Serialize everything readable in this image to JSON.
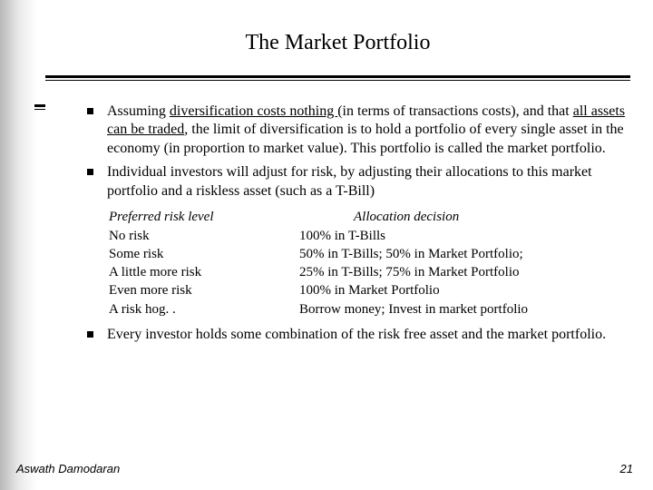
{
  "title": "The Market Portfolio",
  "bullets": {
    "b1": {
      "t1": "Assuming ",
      "u1": "diversification costs nothing ",
      "t2": "(in terms of transactions costs), and that ",
      "u2": "all assets can be traded",
      "t3": ", the limit of diversification is to hold a portfolio of every single asset in the economy (in proportion to market value). This portfolio is called the market portfolio."
    },
    "b2": "Individual investors will adjust for risk, by adjusting their allocations to this market portfolio and a riskless asset (such as a T-Bill)",
    "b3": "Every investor holds some combination of the risk free asset and the market portfolio."
  },
  "table": {
    "header": {
      "left": "Preferred risk level",
      "right": "Allocation decision"
    },
    "rows": [
      {
        "left": "No risk",
        "right": "100% in T-Bills"
      },
      {
        "left": "Some risk",
        "right": "50% in T-Bills; 50% in Market Portfolio;"
      },
      {
        "left": "A little more risk",
        "right": "25% in T-Bills; 75% in Market Portfolio"
      },
      {
        "left": "Even more risk",
        "right": "100% in Market Portfolio"
      },
      {
        "left": "A risk hog. .",
        "right": "Borrow money; Invest in market portfolio"
      }
    ]
  },
  "footer": {
    "author": "Aswath Damodaran",
    "page": "21"
  }
}
